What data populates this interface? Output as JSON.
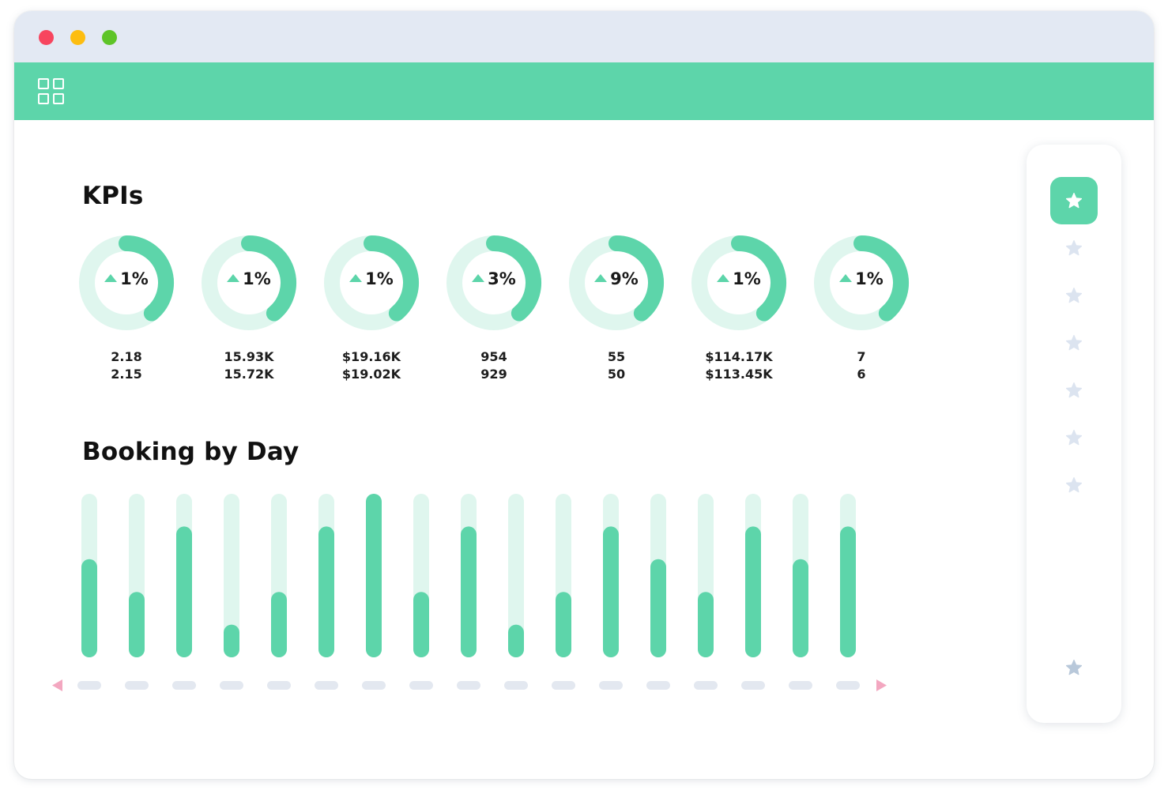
{
  "colors": {
    "accent": "#5dd5aa",
    "accent_light": "#dff6ee",
    "window_red": "#f7455e",
    "window_yellow": "#fdbd10",
    "window_green": "#5ec428",
    "star_muted": "#dce4f0",
    "star_bottom": "#b8c8da",
    "nav_arrow": "#f3a7c0",
    "scroll_pill": "#e3e8f0"
  },
  "header": {
    "menu_icon": "grid-icon"
  },
  "kpis": {
    "title": "KPIs",
    "items": [
      {
        "change": "1%",
        "current": "2.18",
        "previous": "2.15"
      },
      {
        "change": "1%",
        "current": "15.93K",
        "previous": "15.72K"
      },
      {
        "change": "1%",
        "current": "$19.16K",
        "previous": "$19.02K"
      },
      {
        "change": "3%",
        "current": "954",
        "previous": "929"
      },
      {
        "change": "9%",
        "current": "55",
        "previous": "50"
      },
      {
        "change": "1%",
        "current": "$114.17K",
        "previous": "$113.45K"
      },
      {
        "change": "1%",
        "current": "7",
        "previous": "6"
      }
    ]
  },
  "booking": {
    "title": "Booking by Day"
  },
  "chart_data": {
    "type": "bar",
    "categories": [
      "",
      "",
      "",
      "",
      "",
      "",
      "",
      "",
      "",
      "",
      "",
      "",
      "",
      "",
      "",
      "",
      ""
    ],
    "values": [
      3,
      2,
      4,
      1,
      2,
      4,
      5,
      2,
      4,
      1,
      2,
      4,
      3,
      2,
      4,
      3,
      4
    ],
    "ylim": [
      0,
      5
    ],
    "grid": false,
    "legend": "none"
  },
  "sidebar": {
    "items": [
      {
        "icon": "star-icon",
        "active": true
      },
      {
        "icon": "star-icon",
        "active": false
      },
      {
        "icon": "star-icon",
        "active": false
      },
      {
        "icon": "star-icon",
        "active": false
      },
      {
        "icon": "star-icon",
        "active": false
      },
      {
        "icon": "star-icon",
        "active": false
      },
      {
        "icon": "star-icon",
        "active": false
      }
    ],
    "bottom_icon": "star-icon"
  }
}
